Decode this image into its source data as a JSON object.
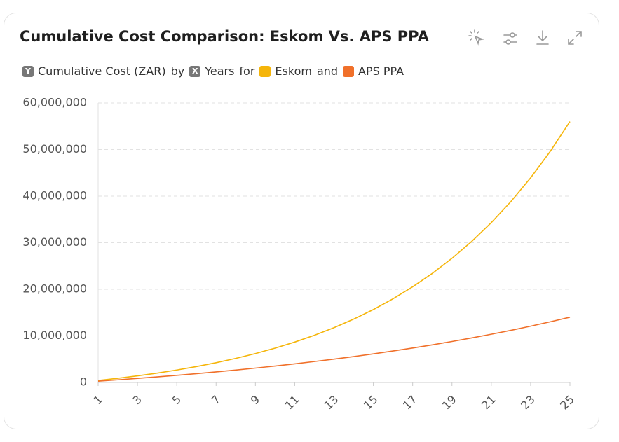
{
  "chart_data": {
    "type": "line",
    "title": "Cumulative Cost Comparison: Eskom Vs. APS PPA",
    "y_badge": "Y",
    "y_label": "Cumulative Cost (ZAR)",
    "x_badge": "X",
    "x_label": "Years",
    "connectors": [
      "by",
      "for",
      "and"
    ],
    "badge_color": "#777777",
    "x": [
      1,
      2,
      3,
      4,
      5,
      6,
      7,
      8,
      9,
      10,
      11,
      12,
      13,
      14,
      15,
      16,
      17,
      18,
      19,
      20,
      21,
      22,
      23,
      24,
      25
    ],
    "series": [
      {
        "name": "Eskom",
        "color": "#f5b50a",
        "values": [
          420000,
          890000,
          1417000,
          2007000,
          2668000,
          3408000,
          4237000,
          5166000,
          6206000,
          7370000,
          8675000,
          10136000,
          11772000,
          13605000,
          15658000,
          17956000,
          20531000,
          23415000,
          26645000,
          30262000,
          34313000,
          38851000,
          43933000,
          49625000,
          56000000
        ]
      },
      {
        "name": "APS PPA",
        "color": "#f0702a",
        "values": [
          274000,
          563000,
          868000,
          1190000,
          1529000,
          1887000,
          2265000,
          2664000,
          3084000,
          3528000,
          3996000,
          4490000,
          5011000,
          5560000,
          6140000,
          6752000,
          7397000,
          8078000,
          8796000,
          9554000,
          10353000,
          11197000,
          12087000,
          13026000,
          14016000
        ]
      }
    ],
    "xlim": [
      1,
      25
    ],
    "xticks": [
      1,
      3,
      5,
      7,
      9,
      11,
      13,
      15,
      17,
      19,
      21,
      23,
      25
    ],
    "ylim": [
      0,
      60000000
    ],
    "yticks": [
      0,
      {
        "value": 10000000,
        "label": "10,000,000"
      },
      {
        "value": 20000000,
        "label": "20,000,000"
      },
      {
        "value": 30000000,
        "label": "30,000,000"
      },
      {
        "value": 40000000,
        "label": "40,000,000"
      },
      {
        "value": 50000000,
        "label": "50,000,000"
      },
      {
        "value": 60000000,
        "label": "60,000,000"
      }
    ],
    "grid": true
  }
}
